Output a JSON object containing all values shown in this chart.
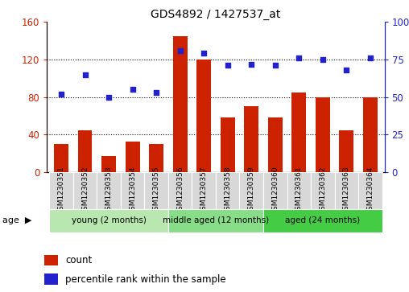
{
  "title": "GDS4892 / 1427537_at",
  "samples": [
    "GSM1230351",
    "GSM1230352",
    "GSM1230353",
    "GSM1230354",
    "GSM1230355",
    "GSM1230356",
    "GSM1230357",
    "GSM1230358",
    "GSM1230359",
    "GSM1230360",
    "GSM1230361",
    "GSM1230362",
    "GSM1230363",
    "GSM1230364"
  ],
  "counts": [
    30,
    45,
    17,
    33,
    30,
    145,
    120,
    58,
    70,
    58,
    85,
    80,
    45,
    80
  ],
  "percentiles": [
    52,
    65,
    50,
    55,
    53,
    81,
    79,
    71,
    72,
    71,
    76,
    75,
    68,
    76
  ],
  "bar_color": "#cc2200",
  "dot_color": "#2222cc",
  "ylim_left": [
    0,
    160
  ],
  "ylim_right": [
    0,
    100
  ],
  "yticks_left": [
    0,
    40,
    80,
    120,
    160
  ],
  "yticks_right": [
    0,
    25,
    50,
    75,
    100
  ],
  "groups": [
    {
      "label": "young (2 months)",
      "start": 0,
      "end": 5,
      "color": "#b8e8b0"
    },
    {
      "label": "middle aged (12 months)",
      "start": 5,
      "end": 9,
      "color": "#88dd88"
    },
    {
      "label": "aged (24 months)",
      "start": 9,
      "end": 14,
      "color": "#44cc44"
    }
  ],
  "legend_count_label": "count",
  "legend_pct_label": "percentile rank within the sample",
  "age_label": "age"
}
